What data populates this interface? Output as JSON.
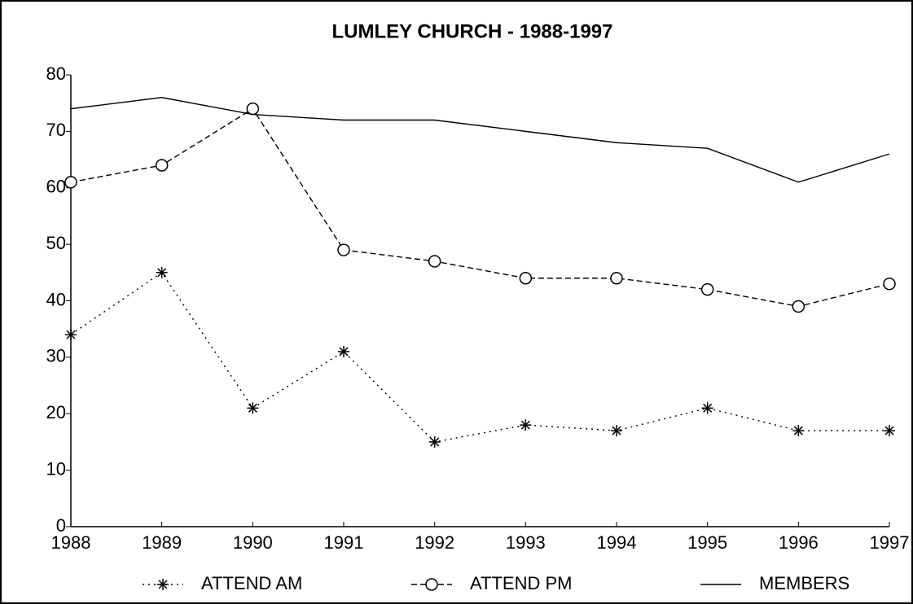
{
  "chart_data": {
    "type": "line",
    "title": "LUMLEY CHURCH - 1988-1997",
    "x": [
      1988,
      1989,
      1990,
      1991,
      1992,
      1993,
      1994,
      1995,
      1996,
      1997
    ],
    "series": [
      {
        "name": "ATTEND AM",
        "color": "#000000",
        "marker": "star",
        "dash": "dotted",
        "values": [
          34,
          45,
          21,
          31,
          15,
          18,
          17,
          21,
          17,
          17
        ]
      },
      {
        "name": "ATTEND PM",
        "color": "#000000",
        "marker": "circle",
        "dash": "dashed",
        "values": [
          61,
          64,
          74,
          49,
          47,
          44,
          44,
          42,
          39,
          43
        ]
      },
      {
        "name": "MEMBERS",
        "color": "#000000",
        "marker": "none",
        "dash": "solid",
        "values": [
          74,
          76,
          73,
          72,
          72,
          70,
          68,
          67,
          61,
          66
        ]
      }
    ],
    "xlim": [
      1988,
      1997
    ],
    "xticks": [
      1988,
      1989,
      1990,
      1991,
      1992,
      1993,
      1994,
      1995,
      1996,
      1997
    ],
    "ylim": [
      0,
      80
    ],
    "yticks": [
      0,
      10,
      20,
      30,
      40,
      50,
      60,
      70,
      80
    ],
    "grid": false,
    "legend": "bottom"
  }
}
